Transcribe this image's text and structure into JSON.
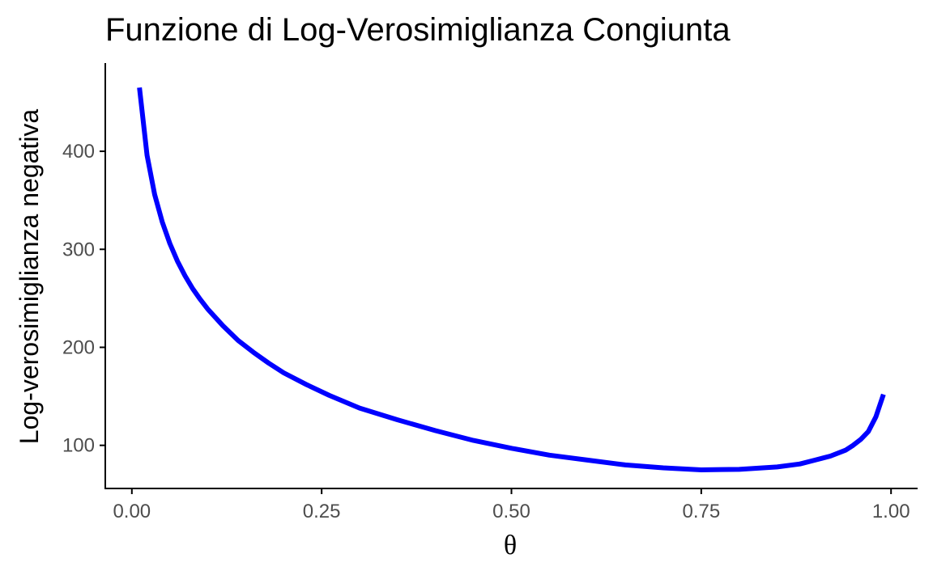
{
  "chart_data": {
    "type": "line",
    "title": "Funzione di Log-Verosimiglianza Congiunta",
    "xlabel": "θ",
    "ylabel": "Log-verosimiglianza negativa",
    "xlim": [
      -0.035,
      1.035
    ],
    "ylim": [
      56,
      490
    ],
    "x_ticks": [
      0.0,
      0.25,
      0.5,
      0.75,
      1.0
    ],
    "x_tick_labels": [
      "0.00",
      "0.25",
      "0.50",
      "0.75",
      "1.00"
    ],
    "y_ticks": [
      100,
      200,
      300,
      400
    ],
    "y_tick_labels": [
      "100",
      "200",
      "300",
      "400"
    ],
    "grid": false,
    "legend": "none",
    "color": "#0000ff",
    "series": [
      {
        "x": [
          0.01,
          0.02,
          0.03,
          0.04,
          0.05,
          0.06,
          0.07,
          0.08,
          0.09,
          0.1,
          0.12,
          0.14,
          0.16,
          0.18,
          0.2,
          0.23,
          0.26,
          0.3,
          0.35,
          0.4,
          0.45,
          0.5,
          0.55,
          0.6,
          0.65,
          0.7,
          0.75,
          0.8,
          0.85,
          0.88,
          0.9,
          0.92,
          0.94,
          0.95,
          0.96,
          0.97,
          0.98,
          0.99
        ],
        "values": [
          465,
          396,
          356,
          328,
          306,
          288,
          273,
          260,
          249,
          239,
          222,
          207,
          195,
          184,
          174,
          162,
          151,
          138,
          126,
          115,
          105,
          97,
          90,
          85,
          80,
          77,
          75,
          75.5,
          78,
          81,
          85,
          89,
          95,
          100,
          106,
          114,
          129,
          152
        ]
      }
    ]
  }
}
